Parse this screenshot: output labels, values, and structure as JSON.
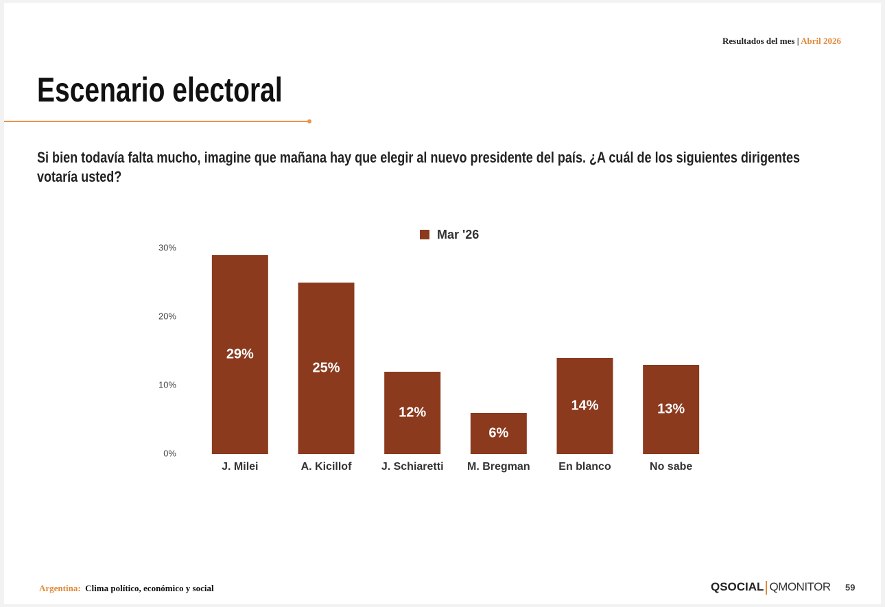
{
  "header": {
    "label": "Resultados del mes",
    "separator": "|",
    "period": "Abril 2026"
  },
  "title": "Escenario electoral",
  "question": "Si bien todavía falta mucho, imagine que mañana hay que elegir al nuevo presidente del país. ¿A cuál de los siguientes dirigentes votaría usted?",
  "chart_data": {
    "type": "bar",
    "categories": [
      "J. Milei",
      "A. Kicillof",
      "J. Schiaretti",
      "M. Bregman",
      "En blanco",
      "No sabe"
    ],
    "series": [
      {
        "name": "Mar '26",
        "color": "#8b3a1e",
        "values": [
          29,
          25,
          12,
          6,
          14,
          13
        ],
        "value_labels": [
          "29%",
          "25%",
          "12%",
          "6%",
          "14%",
          "13%"
        ]
      }
    ],
    "ylim": [
      0,
      30
    ],
    "yticks": [
      {
        "value": 0,
        "label": "0%"
      },
      {
        "value": 10,
        "label": "10%"
      },
      {
        "value": 20,
        "label": "20%"
      },
      {
        "value": 30,
        "label": "30%"
      }
    ],
    "grid": false,
    "legend": "top"
  },
  "footer": {
    "country": "Argentina:",
    "subtitle": "Clima político, económico y social",
    "logo_social": "QSOCIAL",
    "logo_monitor": "QMONITOR",
    "page": "59"
  }
}
